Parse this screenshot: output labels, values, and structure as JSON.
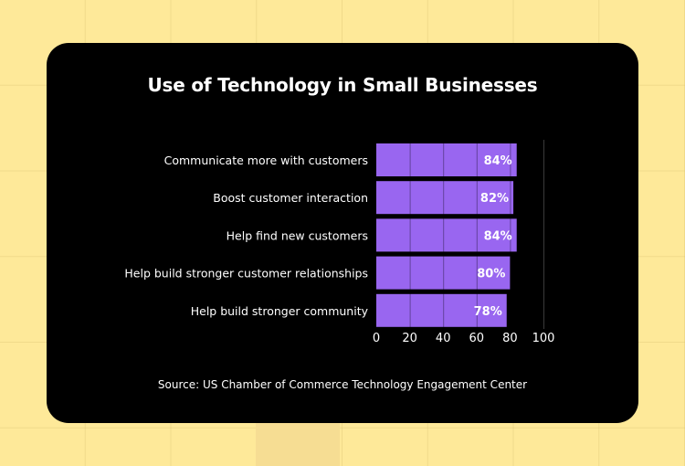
{
  "chart_data": {
    "type": "bar",
    "orientation": "horizontal",
    "title": "Use of Technology in Small Businesses",
    "categories": [
      "Communicate more with customers",
      "Boost customer interaction",
      "Help find new customers",
      "Help build stronger customer relationships",
      "Help build stronger community"
    ],
    "values": [
      84,
      82,
      84,
      80,
      78
    ],
    "value_labels": [
      "84%",
      "82%",
      "84%",
      "80%",
      "78%"
    ],
    "xticks": [
      0,
      20,
      40,
      60,
      80,
      100
    ],
    "xlim": [
      0,
      100
    ],
    "xlabel": "",
    "ylabel": "",
    "grid": true,
    "bar_color": "#9966F0",
    "source": "Source: US Chamber of Commerce Technology Engagement Center"
  },
  "colors": {
    "background": "#FEE999",
    "card": "#000000",
    "bar": "#9966F0",
    "text": "#FFFFFF"
  }
}
